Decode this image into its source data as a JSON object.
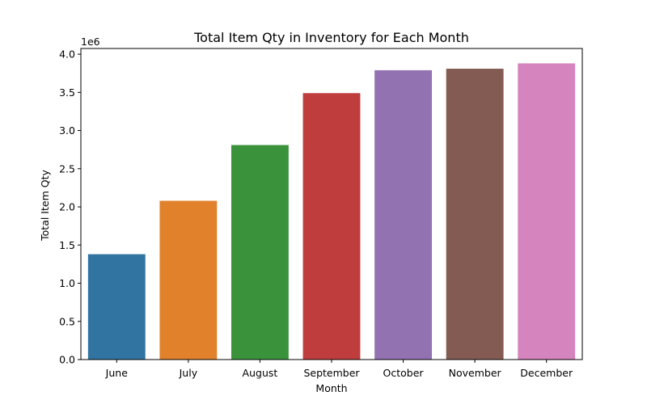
{
  "chart_data": {
    "type": "bar",
    "title": "Total Item Qty in Inventory for Each Month",
    "xlabel": "Month",
    "ylabel": "Total Item Qty",
    "y_offset_label": "1e6",
    "categories": [
      "June",
      "July",
      "August",
      "September",
      "October",
      "November",
      "December"
    ],
    "values": [
      1380000,
      2080000,
      2810000,
      3490000,
      3790000,
      3810000,
      3880000
    ],
    "colors": [
      "#3274a1",
      "#e1812c",
      "#3a923a",
      "#c03d3e",
      "#9372b2",
      "#845b53",
      "#d684bd"
    ],
    "ylim": [
      0,
      4075000
    ],
    "yticks": [
      0,
      500000,
      1000000,
      1500000,
      2000000,
      2500000,
      3000000,
      3500000,
      4000000
    ],
    "ytick_labels": [
      "0.0",
      "0.5",
      "1.0",
      "1.5",
      "2.0",
      "2.5",
      "3.0",
      "3.5",
      "4.0"
    ],
    "grid": false,
    "legend": "none"
  }
}
